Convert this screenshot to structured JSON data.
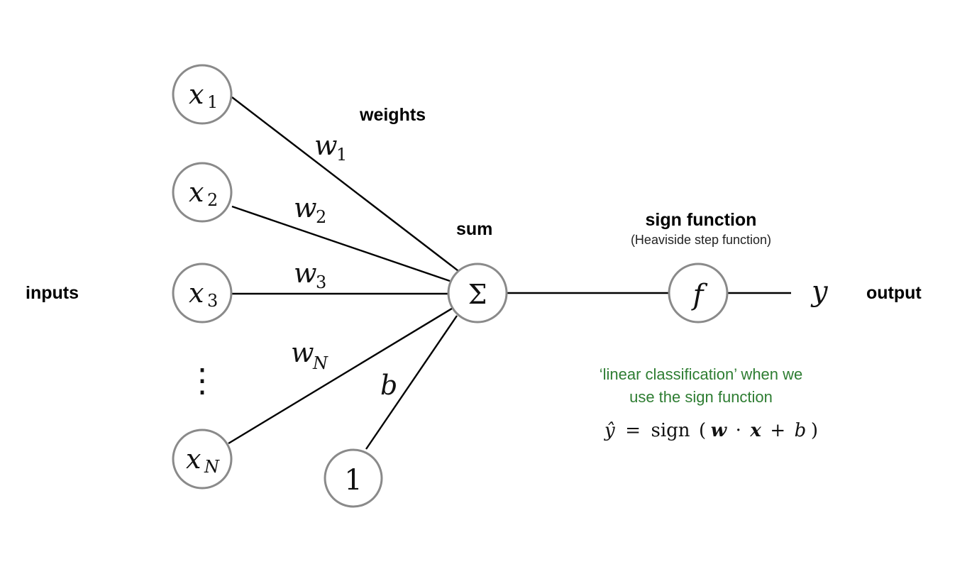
{
  "labels": {
    "inputs": "inputs",
    "weights": "weights",
    "sum": "sum",
    "sign_function": "sign function",
    "sign_function_sub": "(Heaviside step function)",
    "output": "output"
  },
  "nodes": {
    "x1": {
      "base": "x",
      "sub": "1"
    },
    "x2": {
      "base": "x",
      "sub": "2"
    },
    "x3": {
      "base": "x",
      "sub": "3"
    },
    "xN": {
      "base": "x",
      "sub": "N"
    },
    "bias_input": "1",
    "sum": "Σ",
    "activation": "f"
  },
  "ellipsis": "⋮",
  "edge_labels": {
    "w1": {
      "base": "w",
      "sub": "1"
    },
    "w2": {
      "base": "w",
      "sub": "2"
    },
    "w3": {
      "base": "w",
      "sub": "3"
    },
    "wN": {
      "base": "w",
      "sub": "N"
    },
    "b": "b"
  },
  "output_symbol": "y",
  "note": {
    "line1": "‘linear classification’ when we",
    "line2": "use the sign function"
  },
  "formula": {
    "yhat": "ŷ",
    "equals": "=",
    "sign": "sign",
    "open": "(",
    "w": "w",
    "dot": "·",
    "x": "x",
    "plus": "+",
    "b": "b",
    "close": ")"
  },
  "colors": {
    "node_stroke": "#8a8a8a",
    "edge": "#000000",
    "note_text": "#2e7d32"
  }
}
